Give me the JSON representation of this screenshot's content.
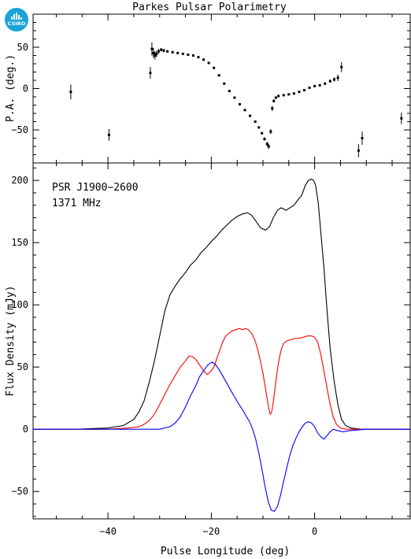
{
  "logo": {
    "text": "CSIRO"
  },
  "chart_data": {
    "title": "Parkes Pulsar Polarimetry",
    "xlabel": "Pulse Longitude (deg)",
    "xlim": [
      -54.5,
      18.5
    ],
    "xticks": [
      -40,
      -20,
      0
    ],
    "annotations": [
      "PSR J1900−2600",
      "1371 MHz"
    ],
    "panels": [
      {
        "name": "position-angle",
        "type": "scatter",
        "ylabel": "P.A. (deg.)",
        "ylim": [
          -90,
          90
        ],
        "yticks": [
          -50,
          0,
          50
        ],
        "series": [
          {
            "color": "#000000",
            "points": [
              [
                -47.2,
                -4,
                9
              ],
              [
                -39.8,
                -56,
                7
              ],
              [
                -31.8,
                19,
                7
              ],
              [
                -31.5,
                48,
                8
              ],
              [
                -31.2,
                43,
                6
              ],
              [
                -30.9,
                40,
                5
              ],
              [
                -30.6,
                42,
                4
              ],
              [
                -30.2,
                45,
                3
              ],
              [
                -29.7,
                47,
                2
              ],
              [
                -29.2,
                46,
                2
              ],
              [
                -28.5,
                45,
                1.5
              ],
              [
                -27.5,
                44,
                1.2
              ],
              [
                -26.5,
                43,
                1
              ],
              [
                -25.5,
                42,
                1
              ],
              [
                -24.5,
                41,
                1
              ],
              [
                -23.5,
                40,
                1
              ],
              [
                -22.5,
                38,
                1
              ],
              [
                -21.5,
                35,
                1
              ],
              [
                -20.5,
                31,
                1
              ],
              [
                -19.5,
                25,
                1
              ],
              [
                -18.5,
                16,
                1
              ],
              [
                -17.5,
                6,
                1
              ],
              [
                -16.5,
                -3,
                1
              ],
              [
                -15.5,
                -11,
                1
              ],
              [
                -14.5,
                -19,
                1
              ],
              [
                -13.5,
                -26,
                1
              ],
              [
                -12.5,
                -33,
                1
              ],
              [
                -11.5,
                -40,
                1
              ],
              [
                -10.8,
                -47,
                1.2
              ],
              [
                -10.2,
                -54,
                1.5
              ],
              [
                -9.7,
                -61,
                2
              ],
              [
                -9.2,
                -67,
                2.5
              ],
              [
                -8.9,
                -70,
                3
              ],
              [
                -8.5,
                -52,
                3
              ],
              [
                -8.2,
                -24,
                3
              ],
              [
                -7.9,
                -15,
                2
              ],
              [
                -7.5,
                -11,
                1.5
              ],
              [
                -7.0,
                -9,
                1.2
              ],
              [
                -6.0,
                -8,
                1
              ],
              [
                -5.0,
                -7,
                1
              ],
              [
                -4.0,
                -6,
                1
              ],
              [
                -3.0,
                -4,
                1
              ],
              [
                -2.0,
                -2,
                1
              ],
              [
                -1.0,
                1,
                1
              ],
              [
                0.0,
                3,
                1
              ],
              [
                1.0,
                4,
                1.2
              ],
              [
                2.0,
                6,
                1.5
              ],
              [
                3.0,
                9,
                2
              ],
              [
                3.8,
                11,
                2.5
              ],
              [
                4.5,
                13,
                4
              ],
              [
                5.2,
                26,
                6
              ],
              [
                8.5,
                -75,
                8
              ],
              [
                9.2,
                -60,
                8
              ],
              [
                16.8,
                -36,
                7
              ]
            ]
          }
        ]
      },
      {
        "name": "flux",
        "type": "line",
        "ylabel": "Flux Density (mJy)",
        "ylim": [
          -72,
          214
        ],
        "yticks": [
          -50,
          0,
          50,
          100,
          150,
          200
        ],
        "series": [
          {
            "color": "#000000",
            "x": [
              -54.5,
              -46,
              -40,
              -37,
              -35,
              -34,
              -33,
              -32,
              -31,
              -30,
              -29,
              -28,
              -27,
              -26,
              -25,
              -24,
              -23,
              -22,
              -21,
              -20,
              -19,
              -18,
              -17,
              -16,
              -15,
              -14,
              -13,
              -12.2,
              -11.5,
              -10.5,
              -9.5,
              -8.7,
              -8.0,
              -7.2,
              -6.5,
              -5.5,
              -4.8,
              -4.0,
              -3.3,
              -2.5,
              -1.8,
              -1.2,
              -0.6,
              -0.2,
              0.2,
              0.7,
              1.2,
              1.8,
              2.4,
              3.0,
              3.8,
              4.5,
              5.2,
              6.0,
              7.0,
              9.0,
              12.0,
              15.0,
              18.5
            ],
            "y": [
              0,
              0,
              1,
              3,
              8,
              14,
              23,
              38,
              55,
              75,
              95,
              108,
              115,
              121,
              126,
              132,
              136,
              142,
              146,
              151,
              155,
              160,
              164,
              168,
              171,
              173,
              174,
              172,
              168,
              162,
              160,
              163,
              170,
              176,
              178,
              176,
              178,
              180,
              184,
              188,
              196,
              200,
              201,
              200,
              196,
              182,
              158,
              130,
              95,
              65,
              38,
              20,
              8,
              3,
              1,
              0,
              0,
              0,
              0
            ]
          },
          {
            "color": "#ff0000",
            "x": [
              -54.5,
              -40,
              -36,
              -34,
              -33,
              -32,
              -31,
              -30,
              -29,
              -28,
              -27,
              -26,
              -25,
              -24.3,
              -23.5,
              -23,
              -22.5,
              -22,
              -21.5,
              -20.8,
              -20.2,
              -19.5,
              -19,
              -18.4,
              -17.8,
              -17.2,
              -16.6,
              -16,
              -15.3,
              -14.6,
              -14,
              -13.4,
              -12.8,
              -12.2,
              -11.6,
              -11,
              -10.5,
              -10,
              -9.6,
              -9.2,
              -8.9,
              -8.6,
              -8.3,
              -8,
              -7.6,
              -7.2,
              -6.8,
              -6.4,
              -6,
              -5.4,
              -4.6,
              -3.8,
              -3,
              -2.2,
              -1.4,
              -0.6,
              0,
              0.6,
              1.2,
              1.8,
              2.4,
              3.0,
              3.6,
              4.2,
              5.0,
              6.0,
              8,
              12,
              18.5
            ],
            "y": [
              0,
              0,
              1,
              2,
              4,
              7,
              12,
              20,
              28,
              36,
              43,
              50,
              55,
              59,
              58,
              56,
              53,
              50,
              47,
              44,
              46,
              50,
              56,
              63,
              70,
              75,
              77,
              79,
              80,
              81,
              80,
              81,
              80,
              77,
              72,
              64,
              55,
              45,
              35,
              25,
              17,
              12,
              14,
              22,
              35,
              48,
              58,
              65,
              69,
              71,
              72,
              73,
              73,
              74,
              75,
              75,
              74,
              70,
              60,
              47,
              33,
              20,
              10,
              4,
              1,
              0,
              0,
              0,
              0
            ]
          },
          {
            "color": "#0000ff",
            "x": [
              -54.5,
              -30,
              -28,
              -27,
              -26,
              -25,
              -24,
              -23,
              -22.3,
              -21.5,
              -20.8,
              -20.3,
              -19.8,
              -19.2,
              -18.5,
              -17.8,
              -17,
              -16.2,
              -15.5,
              -14.8,
              -14,
              -13.3,
              -12.6,
              -12,
              -11.4,
              -10.8,
              -10.2,
              -9.6,
              -9.0,
              -8.4,
              -7.8,
              -7.2,
              -6.6,
              -6.0,
              -5.4,
              -4.8,
              -4.2,
              -3.6,
              -3.0,
              -2.4,
              -1.8,
              -1.2,
              -0.6,
              0,
              0.6,
              1.2,
              1.8,
              2.4,
              3.0,
              3.6,
              4.4,
              5.5,
              7,
              10,
              14,
              18.5
            ],
            "y": [
              0,
              0,
              2,
              5,
              10,
              18,
              27,
              35,
              42,
              47,
              51,
              53,
              54,
              52,
              48,
              43,
              37,
              31,
              26,
              21,
              16,
              11,
              6,
              0,
              -8,
              -19,
              -32,
              -46,
              -58,
              -65,
              -66,
              -62,
              -53,
              -42,
              -31,
              -21,
              -13,
              -7,
              -2,
              2,
              5,
              6,
              5,
              2,
              -3,
              -6,
              -8,
              -5,
              -2,
              0,
              -1,
              -2,
              -1,
              0,
              0,
              0
            ]
          }
        ]
      }
    ]
  }
}
